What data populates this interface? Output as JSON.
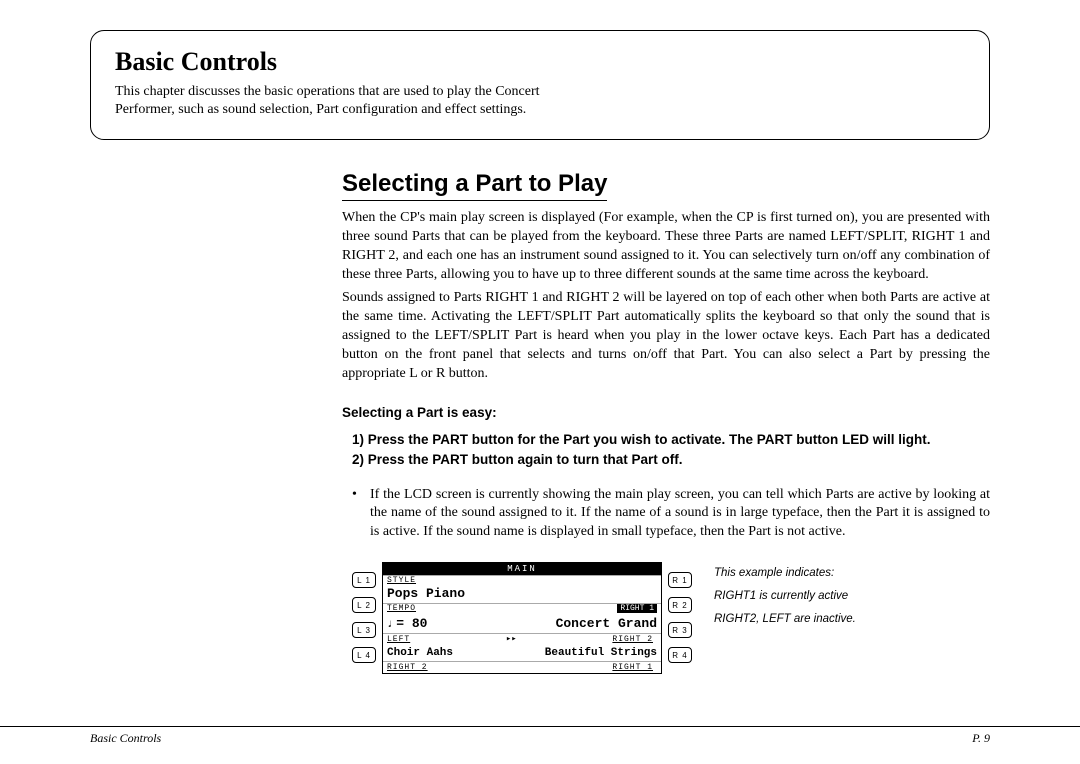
{
  "intro": {
    "title": "Basic Controls",
    "text": "This chapter discusses the basic operations that are used to play the Concert Performer, such as sound selection, Part configuration and effect settings."
  },
  "section": {
    "heading": "Selecting a Part to Play",
    "p1": "When the CP's main play screen is displayed (For example, when the CP is first turned on), you are presented with three sound Parts that can be played from the keyboard.  These three Parts are named LEFT/SPLIT, RIGHT 1 and RIGHT 2, and each one has an instrument sound assigned to it.  You can selectively turn on/off any combination of these three Parts, allowing you to have up to three different sounds at the same time across the keyboard.",
    "p2": "Sounds assigned to Parts RIGHT 1 and RIGHT 2 will be layered on top of each other when both Parts are active at the same time.  Activating the LEFT/SPLIT Part automatically splits the keyboard so that only the sound that is assigned to the LEFT/SPLIT Part is heard when you play in the lower octave keys.  Each Part has a dedicated button on the front panel that selects and turns on/off that Part.  You can also select a Part by pressing the appropriate L or R button."
  },
  "subhead": "Selecting a Part is easy:",
  "steps": {
    "s1": "1)   Press the PART button for the Part you wish to activate.  The PART button LED will light.",
    "s2": "2)   Press the PART button again to turn that Part off."
  },
  "bullet": "If the LCD screen is currently showing the main play screen, you can tell which Parts are active by looking at the name of the sound assigned to it.  If the name of a sound is in large typeface, then the Part it is assigned to is active.  If the sound name is displayed in small typeface, then the Part is not active.",
  "lcd": {
    "left_buttons": [
      "L 1",
      "L 2",
      "L 3",
      "L 4"
    ],
    "right_buttons": [
      "R 1",
      "R 2",
      "R 3",
      "R 4"
    ],
    "topbar": "MAIN",
    "row1": {
      "label": "STYLE",
      "value": "Pops Piano"
    },
    "row2": {
      "label": "TEMPO",
      "tempo": "80",
      "badge": "RIGHT 1",
      "right": "Concert Grand"
    },
    "row3": {
      "label_l": "LEFT",
      "label_r": "RIGHT 2",
      "left_val": "Choir Aahs",
      "right_val": "Beautiful Strings",
      "marker": "▸▸"
    },
    "row4": {
      "label_l": "RIGHT 2",
      "label_r": "RIGHT 1"
    }
  },
  "caption": {
    "l1": "This example indicates:",
    "l2": "RIGHT1 is currently active",
    "l3": "RIGHT2, LEFT are inactive."
  },
  "footer": {
    "left": "Basic Controls",
    "right": "P. 9"
  }
}
